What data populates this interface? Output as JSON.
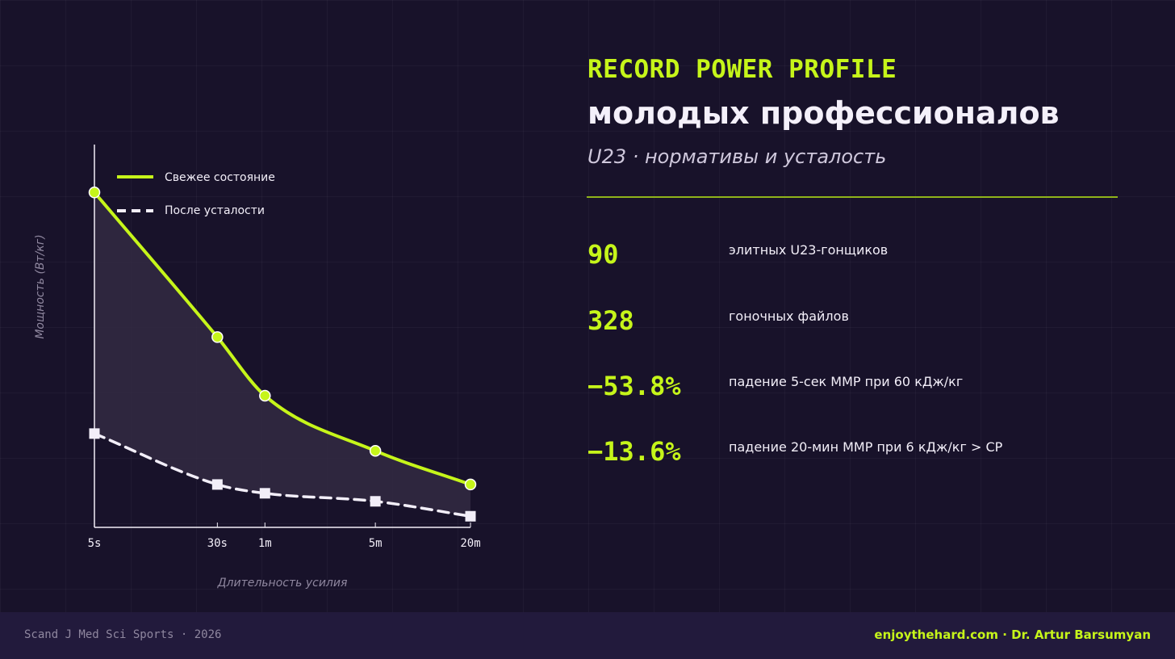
{
  "header": {
    "eyebrow": "RECORD POWER PROFILE",
    "title": "молодых профессионалов",
    "subtitle": "U23 · нормативы и усталость"
  },
  "stats": [
    {
      "value": "90",
      "label": "элитных U23-гонщиков"
    },
    {
      "value": "328",
      "label": "гоночных файлов"
    },
    {
      "value": "−53.8%",
      "label": "падение 5-сек MMP при 60 кДж/кг"
    },
    {
      "value": "−13.6%",
      "label": "падение 20-мин MMP при 6 кДж/кг > CP"
    }
  ],
  "footer": {
    "source": "Scand J Med Sci Sports · 2026",
    "credit": "enjoythehard.com · Dr. Artur Barsumyan"
  },
  "colors": {
    "background": "#18122a",
    "accent": "#c6f51a",
    "fatigued": "#f2eef8",
    "area_fill": "#322a42",
    "footer_bg": "#221a3c"
  },
  "chart_data": {
    "type": "line",
    "x_scale": "log",
    "x_unit": "seconds",
    "x_ticks": [
      {
        "value": 5,
        "label": "5s"
      },
      {
        "value": 30,
        "label": "30s"
      },
      {
        "value": 60,
        "label": "1m"
      },
      {
        "value": 300,
        "label": "5m"
      },
      {
        "value": 1200,
        "label": "20m"
      }
    ],
    "x": [
      5,
      30,
      60,
      300,
      1200
    ],
    "xlim": [
      5,
      1200
    ],
    "ylim": [
      0,
      100
    ],
    "xlabel": "Длительность усилия",
    "ylabel": "Мощность (Вт/кг)",
    "y_tick_labels": false,
    "grid": true,
    "legend_position": "top-left",
    "fill_between_series": true,
    "series": [
      {
        "name": "Свежее состояние",
        "values": [
          87.5,
          49.7,
          34.4,
          20.0,
          11.2
        ],
        "color": "#c6f51a",
        "style": "solid",
        "marker": "circle"
      },
      {
        "name": "После усталости",
        "values": [
          24.5,
          11.2,
          8.9,
          6.8,
          2.9
        ],
        "color": "#f2eef8",
        "style": "dashed",
        "marker": "square"
      }
    ]
  }
}
